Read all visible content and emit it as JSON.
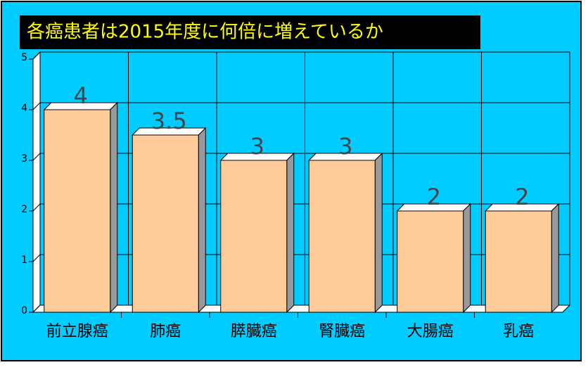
{
  "chart_data": {
    "type": "bar",
    "title": "各癌患者は2015年度に何倍に増えているか",
    "categories": [
      "前立腺癌",
      "肺癌",
      "膵臓癌",
      "腎臓癌",
      "大腸癌",
      "乳癌"
    ],
    "values": [
      4,
      3.5,
      3,
      3,
      2,
      2
    ],
    "color": "#ffcc99",
    "ylim": [
      0,
      5
    ],
    "yticks": [
      0,
      1,
      2,
      3,
      4,
      5
    ],
    "grid": true
  }
}
